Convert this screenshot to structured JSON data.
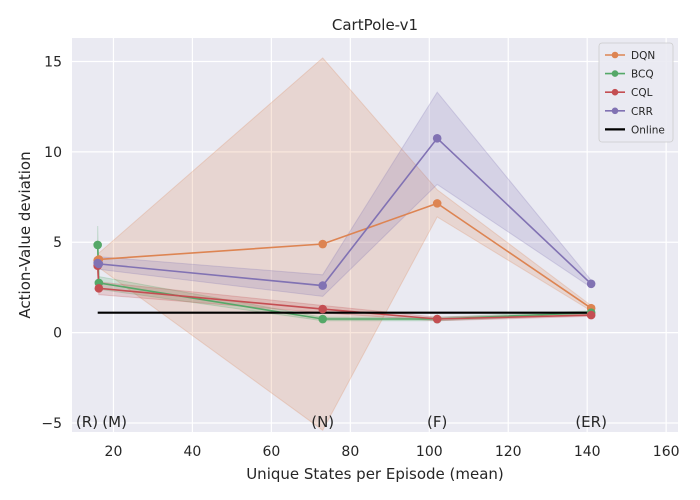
{
  "chart_data": {
    "type": "line",
    "title": "CartPole-v1",
    "xlabel": "Unique States per Episode (mean)",
    "ylabel": "Action-Value deviation",
    "xlim": [
      9.5,
      163
    ],
    "ylim": [
      -5.5,
      16.3
    ],
    "xticks": [
      20,
      40,
      60,
      80,
      100,
      120,
      140,
      160
    ],
    "yticks": [
      -5,
      0,
      5,
      10,
      15
    ],
    "grid": true,
    "legend_position": "top-right",
    "annotations": [
      {
        "text": "(R)",
        "x": 13.3
      },
      {
        "text": "(M)",
        "x": 20.3
      },
      {
        "text": "(N)",
        "x": 73
      },
      {
        "text": "(F)",
        "x": 102
      },
      {
        "text": "(ER)",
        "x": 141
      }
    ],
    "series": [
      {
        "name": "DQN",
        "color": "#dd8452",
        "x": [
          16,
          16.3,
          73,
          102,
          141
        ],
        "y": [
          4.0,
          4.05,
          4.9,
          7.15,
          1.35
        ],
        "lower": [
          3.6,
          3.6,
          -5.4,
          6.4,
          1.2
        ],
        "upper": [
          4.4,
          4.4,
          15.2,
          7.9,
          1.5
        ]
      },
      {
        "name": "BCQ",
        "color": "#55a868",
        "x": [
          16,
          16.3,
          73,
          102,
          141
        ],
        "y": [
          4.85,
          2.75,
          0.75,
          0.75,
          1.1
        ],
        "lower": [
          3.8,
          2.4,
          0.65,
          0.65,
          1.0
        ],
        "upper": [
          5.9,
          3.1,
          0.85,
          0.85,
          1.2
        ]
      },
      {
        "name": "CQL",
        "color": "#c44e52",
        "x": [
          16,
          16.3,
          73,
          102,
          141
        ],
        "y": [
          3.7,
          2.45,
          1.3,
          0.75,
          0.97
        ],
        "lower": [
          3.4,
          2.1,
          1.1,
          0.65,
          0.9
        ],
        "upper": [
          4.0,
          2.8,
          1.5,
          0.85,
          1.05
        ]
      },
      {
        "name": "CRR",
        "color": "#8172b3",
        "x": [
          16,
          16.3,
          73,
          102,
          141
        ],
        "y": [
          3.85,
          3.8,
          2.6,
          10.75,
          2.7
        ],
        "lower": [
          3.5,
          3.5,
          2.0,
          8.2,
          2.5
        ],
        "upper": [
          4.2,
          4.2,
          3.2,
          13.3,
          2.9
        ]
      },
      {
        "name": "Online",
        "color": "#000000",
        "x": [
          16,
          141
        ],
        "y": [
          1.1,
          1.1
        ]
      }
    ]
  }
}
